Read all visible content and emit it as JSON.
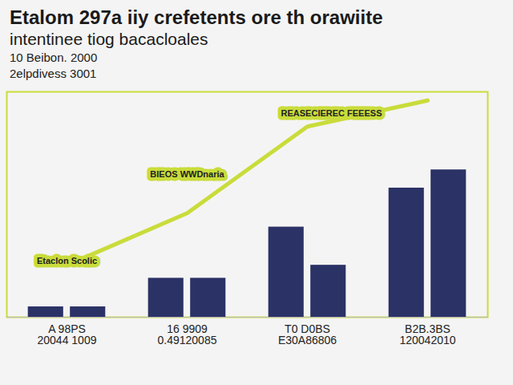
{
  "chart_data": {
    "type": "bar",
    "title": "Etalom 297a iiy crefetents ore th orawiite",
    "subtitle": "intentinee tiog bacacloales",
    "caption": [
      "10 Beibon. 2000",
      "2elpdivess 3001"
    ],
    "categories": [
      "A 98PS\n20044 1009",
      "16 9909\n0.49120085",
      "T0 D0BS\nE30A86806",
      "B2B.3BS\n120042010"
    ],
    "series": [
      {
        "type": "bar",
        "color": "#2b3266",
        "values": [
          12,
          45,
          104,
          149
        ]
      },
      {
        "type": "bar",
        "color": "#2b3266",
        "values": [
          12,
          45,
          60,
          170
        ]
      },
      {
        "type": "line",
        "color": "#c9dc3a",
        "values": [
          60,
          120,
          220,
          250
        ]
      }
    ],
    "ylim": [
      0,
      260
    ],
    "tick_labels": "x",
    "grid": false,
    "annotations": [
      {
        "text": "Etaclon Scolic",
        "x": 0,
        "value": 65
      },
      {
        "text": "BIEOS WWDnaria",
        "x": 1,
        "value": 165
      },
      {
        "text": "REASECIEREC FEEESS",
        "x": 2.2,
        "value": 235
      }
    ]
  }
}
